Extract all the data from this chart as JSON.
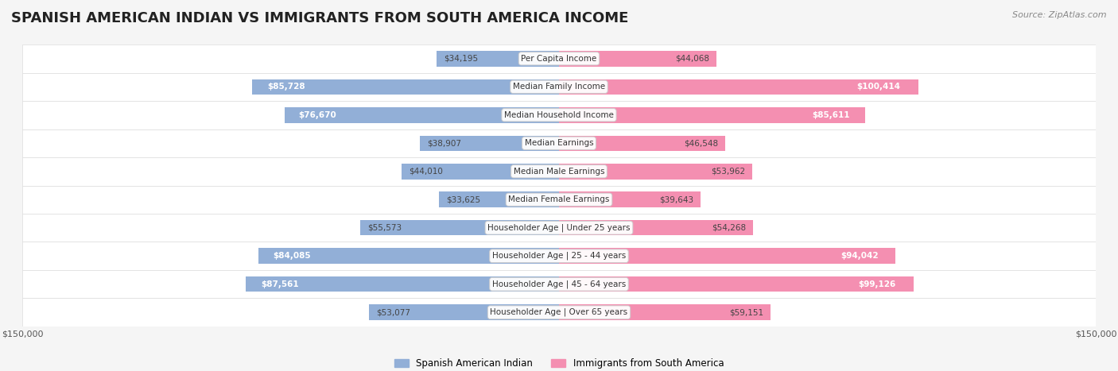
{
  "title": "SPANISH AMERICAN INDIAN VS IMMIGRANTS FROM SOUTH AMERICA INCOME",
  "source": "Source: ZipAtlas.com",
  "categories": [
    "Per Capita Income",
    "Median Family Income",
    "Median Household Income",
    "Median Earnings",
    "Median Male Earnings",
    "Median Female Earnings",
    "Householder Age | Under 25 years",
    "Householder Age | 25 - 44 years",
    "Householder Age | 45 - 64 years",
    "Householder Age | Over 65 years"
  ],
  "left_values": [
    34195,
    85728,
    76670,
    38907,
    44010,
    33625,
    55573,
    84085,
    87561,
    53077
  ],
  "right_values": [
    44068,
    100414,
    85611,
    46548,
    53962,
    39643,
    54268,
    94042,
    99126,
    59151
  ],
  "left_labels": [
    "$34,195",
    "$85,728",
    "$76,670",
    "$38,907",
    "$44,010",
    "$33,625",
    "$55,573",
    "$84,085",
    "$87,561",
    "$53,077"
  ],
  "right_labels": [
    "$44,068",
    "$100,414",
    "$85,611",
    "$46,548",
    "$53,962",
    "$39,643",
    "$54,268",
    "$94,042",
    "$99,126",
    "$59,151"
  ],
  "left_color": "#92afd7",
  "right_color": "#f48fb1",
  "left_color_dark": "#5b8dc8",
  "right_color_dark": "#e91e8c",
  "max_value": 150000,
  "legend_left": "Spanish American Indian",
  "legend_right": "Immigrants from South America",
  "background_color": "#f5f5f5",
  "row_bg_color": "#ffffff",
  "title_fontsize": 13,
  "label_fontsize": 9,
  "bar_height": 0.55
}
